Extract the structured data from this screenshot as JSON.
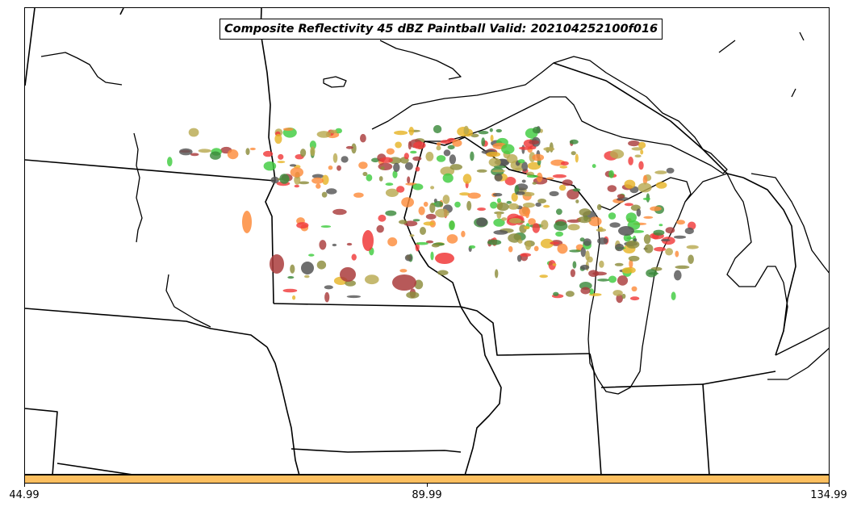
{
  "title": "Composite Reflectivity 45 dBZ Paintball Valid: 202104252100f016",
  "colorbar": {
    "color": "#fdbf5f",
    "ticks": [
      "44.99",
      "89.99",
      "134.99"
    ]
  },
  "palette": {
    "red": "#f03a3a",
    "green": "#3fcc3f",
    "darkgreen": "#3c8a3c",
    "orange": "#fd8c3c",
    "olive": "#8c8c3c",
    "khaki": "#b8aa50",
    "gold": "#e6b428",
    "brown": "#aa3c3c",
    "gray": "#555555"
  }
}
